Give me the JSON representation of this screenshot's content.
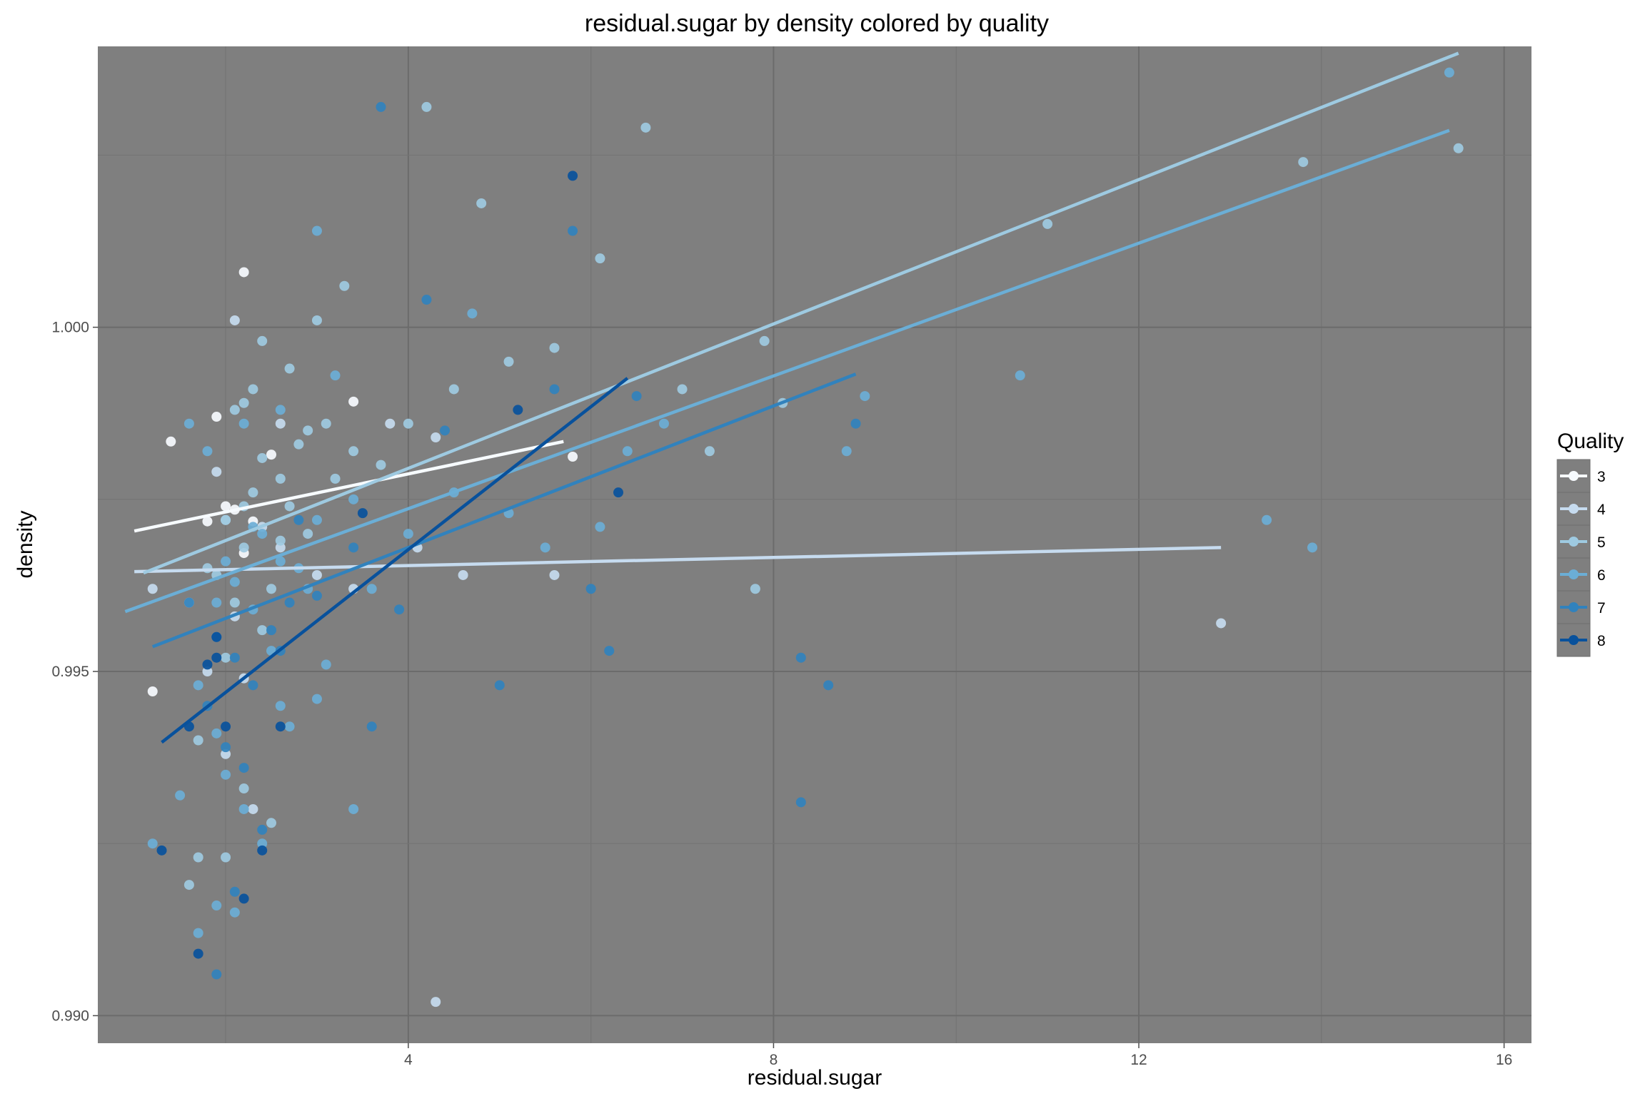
{
  "chart_data": {
    "type": "scatter",
    "title": "residual.sugar by density colored by quality",
    "xlabel": "residual.sugar",
    "ylabel": "density",
    "xlim": [
      0.6,
      16.3
    ],
    "ylim": [
      0.9896,
      1.00408
    ],
    "xticks": [
      4,
      8,
      12,
      16
    ],
    "xtick_labels": [
      "4",
      "8",
      "12",
      "16"
    ],
    "yticks": [
      0.99,
      0.995,
      1.0
    ],
    "ytick_labels": [
      "0.990",
      "0.995",
      "1.000"
    ],
    "grid": true,
    "legend": {
      "title": "Quality",
      "position": "right"
    },
    "series": [
      {
        "name": "3",
        "color": "#f7fbff",
        "points": [
          [
            1.2,
            0.99471
          ],
          [
            1.8,
            0.99718
          ],
          [
            2.3,
            0.99718
          ],
          [
            3.4,
            0.99892
          ],
          [
            5.8,
            0.99812
          ],
          [
            1.4,
            0.99834
          ],
          [
            2.1,
            0.99735
          ],
          [
            2.5,
            0.99815
          ],
          [
            2.2,
            1.0008
          ],
          [
            1.9,
            0.9987
          ],
          [
            2.2,
            0.99672
          ],
          [
            2.0,
            0.9974
          ]
        ],
        "fit": {
          "x": [
            1.0,
            5.7
          ],
          "y": [
            0.99704,
            0.99834
          ]
        }
      },
      {
        "name": "4",
        "color": "#c6dbef",
        "points": [
          [
            1.2,
            0.9962
          ],
          [
            1.6,
            0.996
          ],
          [
            2.0,
            0.9972
          ],
          [
            2.1,
            0.9958
          ],
          [
            2.2,
            0.9949
          ],
          [
            2.4,
            0.9971
          ],
          [
            2.6,
            0.9968
          ],
          [
            3.0,
            0.9964
          ],
          [
            3.4,
            0.9962
          ],
          [
            4.1,
            0.9968
          ],
          [
            4.3,
            0.9984
          ],
          [
            4.6,
            0.9964
          ],
          [
            5.6,
            0.9964
          ],
          [
            1.8,
            0.995
          ],
          [
            2.0,
            0.9938
          ],
          [
            2.3,
            0.993
          ],
          [
            4.3,
            0.9902
          ],
          [
            12.9,
            0.9957
          ],
          [
            1.9,
            0.9979
          ],
          [
            2.6,
            0.9986
          ],
          [
            2.1,
            1.0001
          ],
          [
            3.8,
            0.9986
          ]
        ],
        "fit": {
          "x": [
            1.0,
            12.9
          ],
          "y": [
            0.99645,
            0.9968
          ]
        }
      },
      {
        "name": "5",
        "color": "#9ecae1",
        "points": [
          [
            1.9,
            0.9964
          ],
          [
            2.0,
            0.9972
          ],
          [
            2.2,
            0.9968
          ],
          [
            2.3,
            0.9976
          ],
          [
            2.4,
            0.9981
          ],
          [
            2.6,
            0.9969
          ],
          [
            2.7,
            0.9974
          ],
          [
            2.9,
            0.997
          ],
          [
            3.2,
            0.9978
          ],
          [
            3.4,
            0.9982
          ],
          [
            2.1,
            0.996
          ],
          [
            2.5,
            0.9962
          ],
          [
            1.8,
            0.9965
          ],
          [
            2.2,
            0.9974
          ],
          [
            2.6,
            0.9978
          ],
          [
            2.1,
            0.9988
          ],
          [
            2.3,
            0.9991
          ],
          [
            2.7,
            0.9994
          ],
          [
            2.9,
            0.9985
          ],
          [
            3.1,
            0.9986
          ],
          [
            2.0,
            0.9952
          ],
          [
            2.4,
            0.9956
          ],
          [
            1.7,
            0.994
          ],
          [
            2.2,
            0.9933
          ],
          [
            3.7,
            0.998
          ],
          [
            4.0,
            0.9986
          ],
          [
            4.5,
            0.9991
          ],
          [
            4.8,
            1.0018
          ],
          [
            5.1,
            0.9995
          ],
          [
            5.6,
            0.9997
          ],
          [
            6.1,
            1.001
          ],
          [
            6.6,
            1.0029
          ],
          [
            4.2,
            1.0032
          ],
          [
            7.0,
            0.9991
          ],
          [
            7.3,
            0.9982
          ],
          [
            7.8,
            0.9962
          ],
          [
            7.9,
            0.9998
          ],
          [
            8.1,
            0.9989
          ],
          [
            13.8,
            1.0024
          ],
          [
            15.5,
            1.0026
          ],
          [
            11.0,
            1.0015
          ],
          [
            2.2,
            0.9989
          ],
          [
            2.8,
            0.9983
          ],
          [
            2.4,
            0.9998
          ],
          [
            3.0,
            1.0001
          ],
          [
            3.3,
            1.0006
          ],
          [
            1.7,
            0.9923
          ],
          [
            1.6,
            0.9919
          ],
          [
            2.0,
            0.9923
          ],
          [
            2.5,
            0.9928
          ]
        ],
        "fit": {
          "x": [
            1.1,
            15.5
          ],
          "y": [
            0.99643,
            1.00398
          ]
        }
      },
      {
        "name": "6",
        "color": "#6baed6",
        "points": [
          [
            1.9,
            0.996
          ],
          [
            2.0,
            0.9966
          ],
          [
            2.1,
            0.9963
          ],
          [
            2.3,
            0.9959
          ],
          [
            2.4,
            0.997
          ],
          [
            2.6,
            0.9966
          ],
          [
            2.8,
            0.9965
          ],
          [
            3.0,
            0.9972
          ],
          [
            3.4,
            0.9975
          ],
          [
            1.7,
            0.9948
          ],
          [
            1.9,
            0.9941
          ],
          [
            2.0,
            0.9935
          ],
          [
            2.2,
            0.993
          ],
          [
            2.4,
            0.9925
          ],
          [
            2.7,
            0.9942
          ],
          [
            3.0,
            0.9946
          ],
          [
            3.6,
            0.9962
          ],
          [
            4.0,
            0.997
          ],
          [
            4.5,
            0.9976
          ],
          [
            5.1,
            0.9973
          ],
          [
            5.5,
            0.9968
          ],
          [
            6.1,
            0.9971
          ],
          [
            6.4,
            0.9982
          ],
          [
            6.8,
            0.9986
          ],
          [
            8.8,
            0.9982
          ],
          [
            9.0,
            0.999
          ],
          [
            10.7,
            0.9993
          ],
          [
            13.4,
            0.9972
          ],
          [
            13.9,
            0.9968
          ],
          [
            15.4,
            1.0037
          ],
          [
            1.6,
            0.9986
          ],
          [
            1.8,
            0.9982
          ],
          [
            2.2,
            0.9986
          ],
          [
            2.6,
            0.9988
          ],
          [
            2.9,
            0.9962
          ],
          [
            3.1,
            0.9951
          ],
          [
            3.4,
            0.993
          ],
          [
            1.7,
            0.9912
          ],
          [
            1.9,
            0.9916
          ],
          [
            2.1,
            0.9915
          ],
          [
            2.6,
            0.9945
          ],
          [
            3.2,
            0.9993
          ],
          [
            1.2,
            0.9925
          ],
          [
            1.5,
            0.9932
          ],
          [
            2.3,
            0.9971
          ],
          [
            2.5,
            0.9953
          ],
          [
            4.7,
            1.0002
          ],
          [
            3.0,
            1.0014
          ]
        ],
        "fit": {
          "x": [
            0.9,
            15.4
          ],
          "y": [
            0.99587,
            1.00286
          ]
        }
      },
      {
        "name": "7",
        "color": "#3182bd",
        "points": [
          [
            1.9,
            0.9955
          ],
          [
            2.1,
            0.9952
          ],
          [
            2.3,
            0.9948
          ],
          [
            2.5,
            0.9956
          ],
          [
            2.7,
            0.996
          ],
          [
            3.0,
            0.9961
          ],
          [
            3.4,
            0.9968
          ],
          [
            1.6,
            0.996
          ],
          [
            1.8,
            0.9945
          ],
          [
            2.0,
            0.9939
          ],
          [
            2.2,
            0.9936
          ],
          [
            2.4,
            0.9927
          ],
          [
            2.6,
            0.9953
          ],
          [
            3.7,
            1.0032
          ],
          [
            4.2,
            1.0004
          ],
          [
            5.8,
            1.0014
          ],
          [
            6.2,
            0.9953
          ],
          [
            6.0,
            0.9962
          ],
          [
            5.0,
            0.9948
          ],
          [
            8.3,
            0.9931
          ],
          [
            8.6,
            0.9948
          ],
          [
            8.3,
            0.9952
          ],
          [
            8.9,
            0.9986
          ],
          [
            6.5,
            0.999
          ],
          [
            4.4,
            0.9985
          ],
          [
            3.6,
            0.9942
          ],
          [
            2.1,
            0.9918
          ],
          [
            2.8,
            0.9972
          ],
          [
            3.9,
            0.9959
          ],
          [
            1.9,
            0.9906
          ],
          [
            5.6,
            0.9991
          ]
        ],
        "fit": {
          "x": [
            1.2,
            8.9
          ],
          "y": [
            0.99536,
            0.99932
          ]
        }
      },
      {
        "name": "8",
        "color": "#08519c",
        "points": [
          [
            1.3,
            0.9924
          ],
          [
            1.6,
            0.9942
          ],
          [
            1.8,
            0.9951
          ],
          [
            2.0,
            0.9942
          ],
          [
            2.2,
            0.9917
          ],
          [
            2.4,
            0.9924
          ],
          [
            2.6,
            0.9942
          ],
          [
            1.7,
            0.9909
          ],
          [
            1.9,
            0.9955
          ],
          [
            3.5,
            0.9973
          ],
          [
            5.2,
            0.9988
          ],
          [
            6.3,
            0.9976
          ],
          [
            5.8,
            1.0022
          ],
          [
            1.9,
            0.9952
          ]
        ],
        "fit": {
          "x": [
            1.3,
            6.4
          ],
          "y": [
            0.99397,
            0.99926
          ]
        }
      }
    ]
  }
}
